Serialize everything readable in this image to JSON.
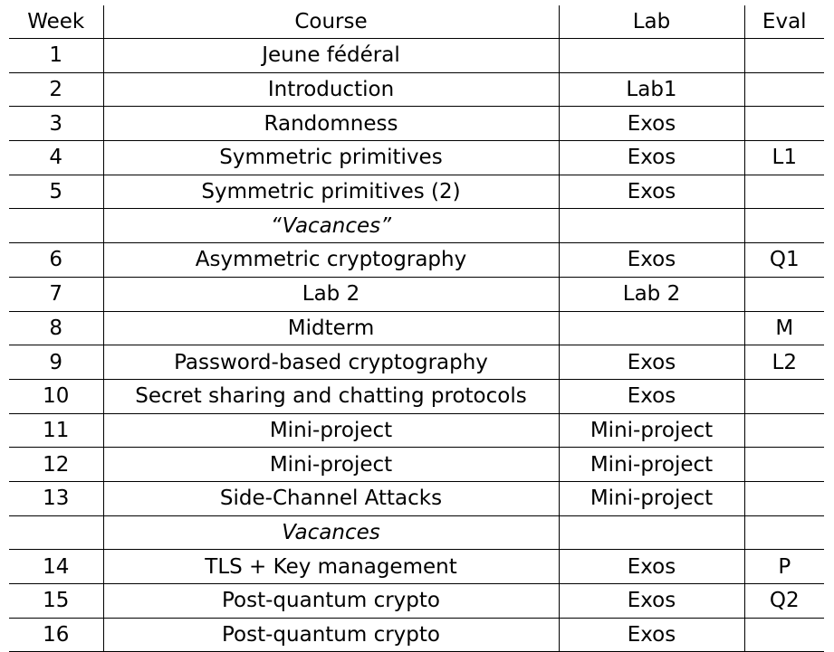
{
  "header": {
    "week": "Week",
    "course": "Course",
    "lab": "Lab",
    "eval": "Eval"
  },
  "rows": [
    {
      "week": "1",
      "course": "Jeune fédéral",
      "lab": "",
      "eval": ""
    },
    {
      "week": "2",
      "course": "Introduction",
      "lab": "Lab1",
      "eval": ""
    },
    {
      "week": "3",
      "course": "Randomness",
      "lab": "Exos",
      "eval": ""
    },
    {
      "week": "4",
      "course": "Symmetric primitives",
      "lab": "Exos",
      "eval": "L1"
    },
    {
      "week": "5",
      "course": "Symmetric primitives (2)",
      "lab": "Exos",
      "eval": ""
    },
    {
      "week": "",
      "course": "“Vacances”",
      "lab": "",
      "eval": ""
    },
    {
      "week": "6",
      "course": "Asymmetric cryptography",
      "lab": "Exos",
      "eval": "Q1"
    },
    {
      "week": "7",
      "course": "Lab 2",
      "lab": "Lab 2",
      "eval": ""
    },
    {
      "week": "8",
      "course": "Midterm",
      "lab": "",
      "eval": "M"
    },
    {
      "week": "9",
      "course": "Password-based cryptography",
      "lab": "Exos",
      "eval": "L2"
    },
    {
      "week": "10",
      "course": "Secret sharing and chatting protocols",
      "lab": "Exos",
      "eval": ""
    },
    {
      "week": "11",
      "course": "Mini-project",
      "lab": "Mini-project",
      "eval": ""
    },
    {
      "week": "12",
      "course": "Mini-project",
      "lab": "Mini-project",
      "eval": ""
    },
    {
      "week": "13",
      "course": "Side-Channel Attacks",
      "lab": "Mini-project",
      "eval": ""
    },
    {
      "week": "",
      "course": "Vacances",
      "lab": "",
      "eval": ""
    },
    {
      "week": "14",
      "course": "TLS + Key management",
      "lab": "Exos",
      "eval": "P"
    },
    {
      "week": "15",
      "course": "Post-quantum crypto",
      "lab": "Exos",
      "eval": "Q2"
    },
    {
      "week": "16",
      "course": "Post-quantum crypto",
      "lab": "Exos",
      "eval": ""
    }
  ]
}
